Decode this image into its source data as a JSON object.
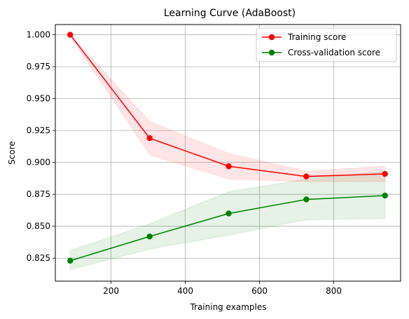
{
  "chart_data": {
    "type": "line",
    "title": "Learning Curve (AdaBoost)",
    "xlabel": "Training examples",
    "ylabel": "Score",
    "xlim": [
      50,
      980
    ],
    "ylim": [
      0.807,
      1.008
    ],
    "x_ticks": [
      200,
      400,
      600,
      800
    ],
    "y_ticks": [
      0.825,
      0.85,
      0.875,
      0.9,
      0.925,
      0.95,
      0.975,
      1.0
    ],
    "y_tick_labels": [
      "0.825",
      "0.850",
      "0.875",
      "0.900",
      "0.925",
      "0.950",
      "0.975",
      "1.000"
    ],
    "grid": true,
    "legend_position": "top-right",
    "x": [
      90,
      304,
      517,
      726,
      938
    ],
    "series": [
      {
        "name": "Training score",
        "color": "#ff0000",
        "band_color": "#ff0000",
        "values": [
          1.0,
          0.919,
          0.897,
          0.889,
          0.891
        ],
        "lower": [
          0.999,
          0.906,
          0.887,
          0.885,
          0.885
        ],
        "upper": [
          1.0,
          0.932,
          0.907,
          0.893,
          0.897
        ]
      },
      {
        "name": "Cross-validation score",
        "color": "#008000",
        "band_color": "#008000",
        "values": [
          0.823,
          0.842,
          0.86,
          0.871,
          0.874
        ],
        "lower": [
          0.816,
          0.832,
          0.843,
          0.855,
          0.856
        ],
        "upper": [
          0.831,
          0.852,
          0.877,
          0.887,
          0.893
        ]
      }
    ]
  }
}
